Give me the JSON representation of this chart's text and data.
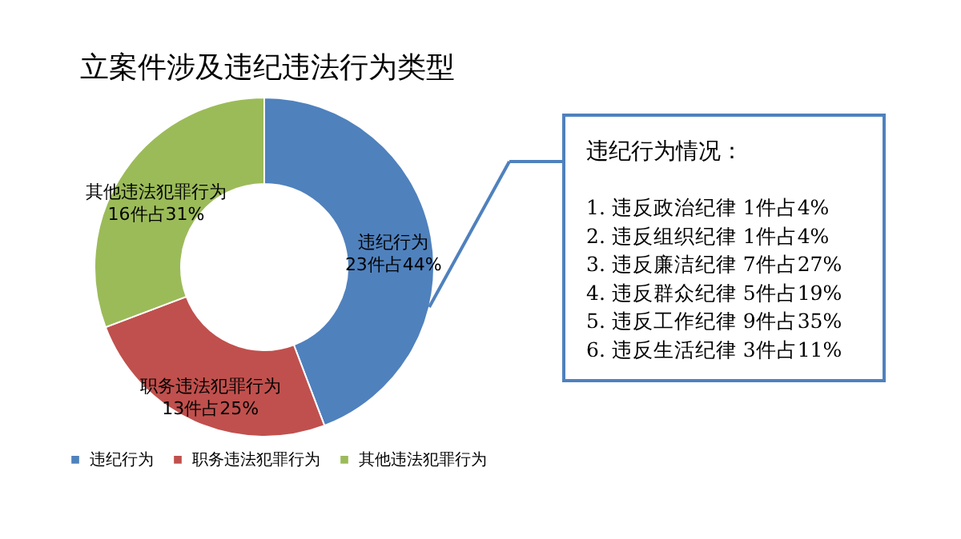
{
  "chart_data": {
    "type": "donut",
    "title": "立案件涉及违纪违法行为类型",
    "categories": [
      "违纪行为",
      "职务违法犯罪行为",
      "其他违法犯罪行为"
    ],
    "values": [
      23,
      13,
      16
    ],
    "colors": [
      "#4f81bd",
      "#c0504d",
      "#9bbb59"
    ],
    "value_labels": [
      "23件占44%",
      "13件占25%",
      "16件占31%"
    ],
    "legend": "bottom",
    "annotations": [
      "违纪行为情况：",
      "1. 违反政治纪律 1件占4%",
      "2. 违反组织纪律 1件占4%",
      "3. 违反廉洁纪律 7件占27%",
      "4. 违反群众纪律 5件占19%",
      "5. 违反工作纪律 9件占35%",
      "6. 违反生活纪律 3件占11%"
    ]
  }
}
